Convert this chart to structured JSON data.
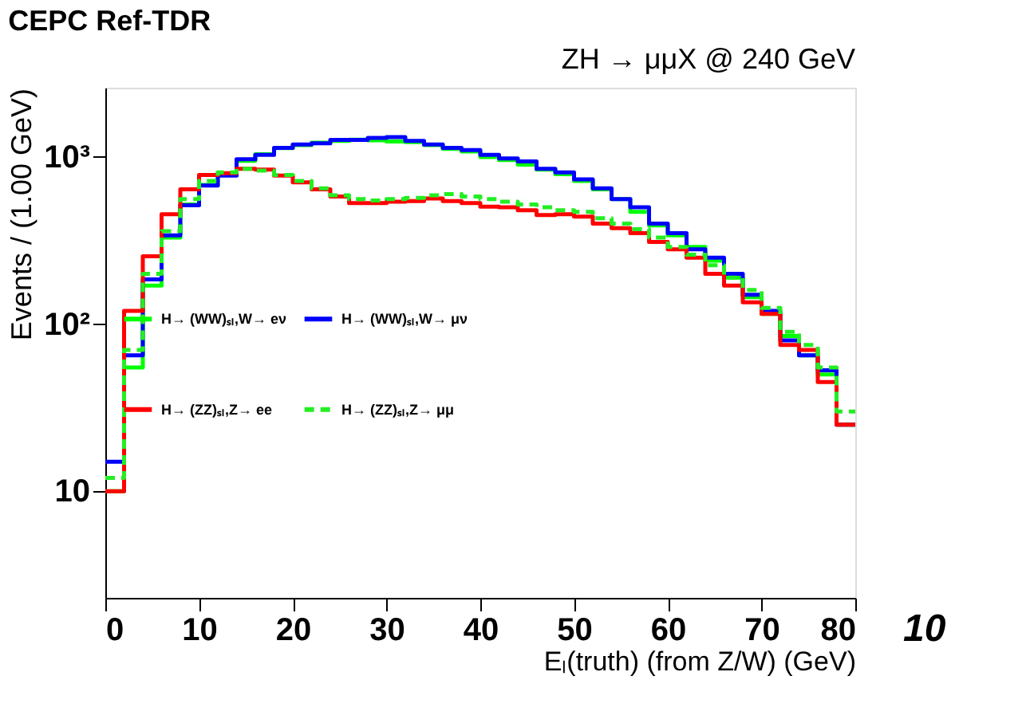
{
  "chart_data": {
    "type": "histogram",
    "title": "CEPC Ref-TDR",
    "subtitle": "ZH → μμX @ 240 GeV",
    "xlabel": "Eₗ(truth) (from Z/W) (GeV)",
    "ylabel": "Events / (1.00 GeV)",
    "annotations": [
      "10"
    ],
    "bins": [
      0,
      2,
      4,
      6,
      8,
      10,
      12,
      14,
      16,
      18,
      20,
      22,
      24,
      26,
      28,
      30,
      32,
      34,
      36,
      38,
      40,
      42,
      44,
      46,
      48,
      50,
      52,
      54,
      56,
      58,
      60,
      62,
      64,
      66,
      68,
      70,
      72,
      74,
      76,
      78,
      80
    ],
    "series": [
      {
        "name": "H→ (WW)ₛₗ,W→ eν",
        "color": "#00ff00",
        "line_style": "solid",
        "values": [
          10,
          55,
          170,
          330,
          520,
          680,
          780,
          950,
          1040,
          1130,
          1180,
          1220,
          1250,
          1270,
          1260,
          1240,
          1230,
          1180,
          1120,
          1080,
          1000,
          960,
          900,
          840,
          790,
          720,
          640,
          560,
          470,
          390,
          340,
          290,
          240,
          190,
          145,
          115,
          85,
          65,
          50,
          25
        ]
      },
      {
        "name": "H→ (WW)ₛₗ,W→ μν",
        "color": "#0000ff",
        "line_style": "solid",
        "values": [
          15,
          65,
          185,
          340,
          515,
          675,
          775,
          970,
          1030,
          1135,
          1190,
          1210,
          1265,
          1265,
          1300,
          1315,
          1250,
          1190,
          1135,
          1100,
          1030,
          980,
          940,
          850,
          810,
          735,
          650,
          560,
          500,
          400,
          350,
          280,
          250,
          200,
          150,
          120,
          80,
          65,
          53,
          25
        ]
      },
      {
        "name": "H→ (ZZ)ₛₗ,Z→ ee",
        "color": "#ff0000",
        "line_style": "solid",
        "values": [
          10,
          120,
          255,
          455,
          640,
          780,
          800,
          850,
          840,
          775,
          705,
          640,
          580,
          530,
          530,
          540,
          545,
          565,
          545,
          530,
          505,
          500,
          480,
          450,
          455,
          440,
          400,
          375,
          350,
          310,
          280,
          250,
          200,
          170,
          135,
          115,
          75,
          70,
          45,
          25
        ]
      },
      {
        "name": "H→ (ZZ)ₛₗ,Z→ μμ",
        "color": "#22ee22",
        "line_style": "dashed",
        "values": [
          12,
          70,
          200,
          360,
          560,
          720,
          810,
          850,
          830,
          780,
          720,
          650,
          590,
          560,
          550,
          560,
          570,
          590,
          600,
          580,
          560,
          540,
          520,
          500,
          480,
          470,
          430,
          400,
          370,
          330,
          290,
          260,
          225,
          190,
          160,
          125,
          90,
          75,
          55,
          30
        ]
      }
    ],
    "xlim": [
      0,
      80
    ],
    "xticks": [
      0,
      10,
      20,
      30,
      40,
      50,
      60,
      70,
      80
    ],
    "ylim": [
      2.3,
      2600
    ],
    "log": true,
    "yticks": [
      {
        "value": 10,
        "label": "10"
      },
      {
        "value": 100,
        "label": "10²"
      },
      {
        "value": 1000,
        "label": "10³"
      }
    ],
    "legend": "left",
    "grid": false
  }
}
